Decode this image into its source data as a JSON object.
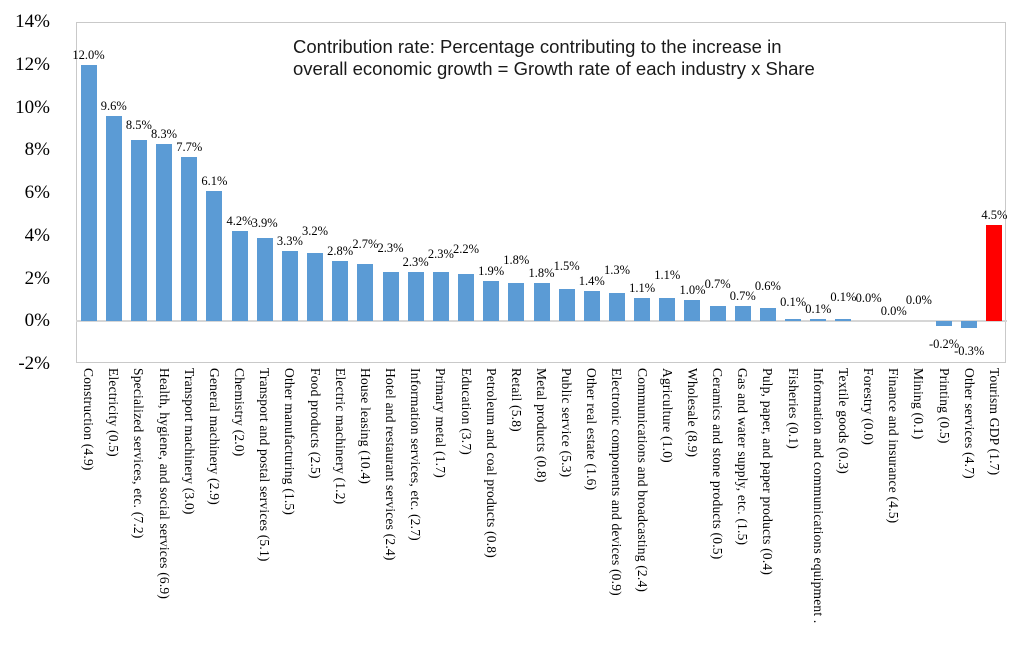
{
  "annotation": {
    "line1": "Contribution rate: Percentage contributing to the increase in",
    "line2": "overall economic growth = Growth rate of each industry x Share"
  },
  "colors": {
    "bar": "#5B9BD5",
    "highlight": "#FF0000",
    "plot_border": "#C9C9C9",
    "axis_line": "#D6D6D6",
    "text": "#000000"
  },
  "chart_data": {
    "type": "bar",
    "title": "Contribution rate: Percentage contributing to the increase in overall economic growth = Growth rate of each industry x Share",
    "xlabel": "",
    "ylabel": "",
    "ylim": [
      -2,
      14
    ],
    "grid": false,
    "legend": "none",
    "ytick_labels": [
      "14%",
      "12%",
      "10%",
      "8%",
      "6%",
      "4%",
      "2%",
      "0%",
      "-2%"
    ],
    "ytick_values": [
      14,
      12,
      10,
      8,
      6,
      4,
      2,
      0,
      -2
    ],
    "categories": [
      "Construction (4.9)",
      "Electricity (0.5)",
      "Specialized services, etc. (7.2)",
      "Health, hygiene, and social services (6.9)",
      "Transport machinery (3.0)",
      "General machinery (2.9)",
      "Chemistry (2.0)",
      "Transport and postal services (5.1)",
      "Other manufacturing (1.5)",
      "Food products (2.5)",
      "Electric machinery (1.2)",
      "House leasing (10.4)",
      "Hotel and restaurant services (2.4)",
      "Information services, etc. (2.7)",
      "Primary metal (1.7)",
      "Education (3.7)",
      "Petroleum and coal products (0.8)",
      "Retail (5.8)",
      "Metal products (0.8)",
      "Public service (5.3)",
      "Other real estate (1.6)",
      "Electronic components and devices (0.9)",
      "Communications and broadcasting (2.4)",
      "Agriculture (1.0)",
      "Wholesale (8.9)",
      "Ceramics and stone products (0.5)",
      "Gas and water supply, etc. (1.5)",
      "Pulp, paper, and paper products (0.4)",
      "Fisheries (0.1)",
      "Information and communications equipment .",
      "Textile goods (0.3)",
      "Forestry (0.0)",
      "Finance and insurance (4.5)",
      "Mining (0.1)",
      "Printing (0.5)",
      "Other services (4.7)",
      "Tourism GDP (1.7)"
    ],
    "values": [
      12.0,
      9.6,
      8.5,
      8.3,
      7.7,
      6.1,
      4.2,
      3.9,
      3.3,
      3.2,
      2.8,
      2.7,
      2.3,
      2.3,
      2.3,
      2.2,
      1.9,
      1.8,
      1.8,
      1.5,
      1.4,
      1.3,
      1.1,
      1.1,
      1.0,
      0.7,
      0.7,
      0.6,
      0.1,
      0.1,
      0.1,
      0.0,
      0.0,
      0.0,
      -0.2,
      -0.3,
      4.5
    ],
    "value_labels": [
      "12.0%",
      "9.6%",
      "8.5%",
      "8.3%",
      "7.7%",
      "6.1%",
      "4.2%",
      "3.9%",
      "3.3%",
      "3.2%",
      "2.8%",
      "2.7%",
      "2.3%",
      "2.3%",
      "2.3%",
      "2.2%",
      "1.9%",
      "1.8%",
      "1.8%",
      "1.5%",
      "1.4%",
      "1.3%",
      "1.1%",
      "1.1%",
      "1.0%",
      "0.7%",
      "0.7%",
      "0.6%",
      "0.1%",
      "0.1%",
      "0.1%",
      "0.0%",
      "0.0%",
      "0.0%",
      "-0.2%",
      "-0.3%",
      "4.5%"
    ],
    "highlight_index": 36
  }
}
